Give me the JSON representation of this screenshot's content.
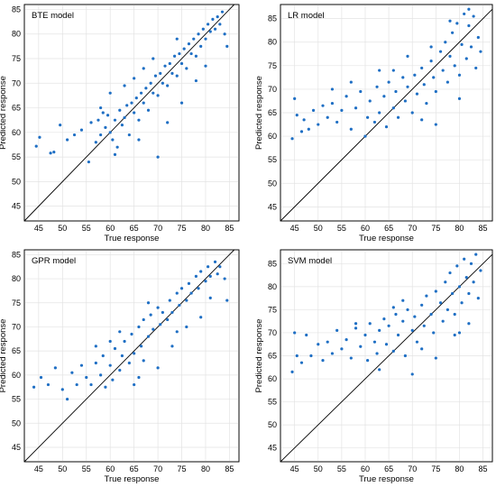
{
  "chart_data": [
    {
      "type": "scatter",
      "title": "BTE model",
      "xlabel": "True response",
      "ylabel": "Predicted response",
      "xlim": [
        42,
        87
      ],
      "ylim": [
        42,
        86
      ],
      "xticks": [
        45,
        50,
        55,
        60,
        65,
        70,
        75,
        80,
        85
      ],
      "yticks": [
        45,
        50,
        55,
        60,
        65,
        70,
        75,
        80,
        85
      ],
      "grid": true,
      "reference_line": "y = x",
      "point_color": "#1f6fc4",
      "points": [
        [
          44.5,
          57.2
        ],
        [
          45.2,
          59.0
        ],
        [
          47.5,
          55.8
        ],
        [
          48.2,
          56.0
        ],
        [
          49.5,
          61.5
        ],
        [
          51.0,
          58.5
        ],
        [
          52.5,
          59.5
        ],
        [
          54.0,
          60.5
        ],
        [
          55.5,
          54.0
        ],
        [
          56.0,
          62.0
        ],
        [
          57.0,
          58.0
        ],
        [
          57.5,
          62.5
        ],
        [
          58.0,
          59.5
        ],
        [
          58.5,
          64.0
        ],
        [
          59.0,
          61.0
        ],
        [
          59.5,
          63.5
        ],
        [
          60.0,
          60.0
        ],
        [
          60.5,
          58.5
        ],
        [
          61.0,
          62.5
        ],
        [
          61.5,
          57.0
        ],
        [
          62.0,
          64.5
        ],
        [
          62.5,
          61.5
        ],
        [
          63.0,
          63.0
        ],
        [
          63.5,
          65.5
        ],
        [
          64.0,
          59.5
        ],
        [
          64.5,
          66.0
        ],
        [
          65.0,
          64.0
        ],
        [
          65.5,
          67.0
        ],
        [
          66.0,
          62.5
        ],
        [
          66.5,
          68.0
        ],
        [
          67.0,
          66.0
        ],
        [
          67.5,
          69.0
        ],
        [
          68.0,
          64.5
        ],
        [
          68.5,
          70.0
        ],
        [
          69.0,
          68.0
        ],
        [
          69.5,
          71.5
        ],
        [
          70.0,
          67.5
        ],
        [
          70.5,
          72.0
        ],
        [
          71.0,
          70.0
        ],
        [
          71.5,
          73.5
        ],
        [
          72.0,
          69.5
        ],
        [
          72.5,
          74.0
        ],
        [
          73.0,
          72.0
        ],
        [
          73.5,
          75.5
        ],
        [
          74.0,
          71.5
        ],
        [
          74.5,
          76.0
        ],
        [
          75.0,
          74.0
        ],
        [
          75.5,
          77.0
        ],
        [
          76.0,
          73.0
        ],
        [
          76.5,
          78.0
        ],
        [
          77.0,
          76.0
        ],
        [
          77.5,
          79.0
        ],
        [
          78.0,
          75.5
        ],
        [
          78.5,
          80.0
        ],
        [
          79.0,
          77.5
        ],
        [
          79.5,
          81.0
        ],
        [
          80.0,
          79.0
        ],
        [
          80.5,
          82.0
        ],
        [
          81.0,
          80.5
        ],
        [
          81.5,
          83.0
        ],
        [
          82.0,
          81.0
        ],
        [
          82.5,
          83.5
        ],
        [
          83.0,
          82.0
        ],
        [
          83.5,
          84.5
        ],
        [
          84.0,
          80.0
        ],
        [
          84.5,
          77.5
        ],
        [
          70.0,
          55.0
        ],
        [
          72.0,
          62.0
        ],
        [
          75.0,
          66.0
        ],
        [
          60.0,
          68.0
        ],
        [
          63.0,
          69.5
        ],
        [
          65.0,
          71.0
        ],
        [
          58.0,
          65.0
        ],
        [
          78.0,
          70.5
        ],
        [
          80.0,
          73.5
        ],
        [
          67.0,
          73.0
        ],
        [
          69.0,
          75.0
        ],
        [
          74.0,
          79.0
        ],
        [
          66.0,
          58.5
        ],
        [
          61.0,
          55.5
        ]
      ]
    },
    {
      "type": "scatter",
      "title": "LR model",
      "xlabel": "True response",
      "ylabel": "Predicted response",
      "xlim": [
        42,
        87
      ],
      "ylim": [
        42,
        88
      ],
      "xticks": [
        45,
        50,
        55,
        60,
        65,
        70,
        75,
        80,
        85
      ],
      "yticks": [
        45,
        50,
        55,
        60,
        65,
        70,
        75,
        80,
        85
      ],
      "grid": true,
      "reference_line": "y = x",
      "point_color": "#1f6fc4",
      "points": [
        [
          44.5,
          59.5
        ],
        [
          45.0,
          68.0
        ],
        [
          45.5,
          64.5
        ],
        [
          46.5,
          61.0
        ],
        [
          47.0,
          63.5
        ],
        [
          48.0,
          61.5
        ],
        [
          49.0,
          65.5
        ],
        [
          50.0,
          62.5
        ],
        [
          51.0,
          66.5
        ],
        [
          52.0,
          64.0
        ],
        [
          53.0,
          67.0
        ],
        [
          54.0,
          63.0
        ],
        [
          55.0,
          65.5
        ],
        [
          56.0,
          68.5
        ],
        [
          57.0,
          61.5
        ],
        [
          58.0,
          66.0
        ],
        [
          59.0,
          69.5
        ],
        [
          60.0,
          60.0
        ],
        [
          60.5,
          64.0
        ],
        [
          61.0,
          67.5
        ],
        [
          62.0,
          63.0
        ],
        [
          62.5,
          70.5
        ],
        [
          63.0,
          65.0
        ],
        [
          64.0,
          68.5
        ],
        [
          64.5,
          62.0
        ],
        [
          65.0,
          71.5
        ],
        [
          66.0,
          66.0
        ],
        [
          66.5,
          69.5
        ],
        [
          67.0,
          64.0
        ],
        [
          68.0,
          72.5
        ],
        [
          68.5,
          67.5
        ],
        [
          69.0,
          70.5
        ],
        [
          70.0,
          65.0
        ],
        [
          70.5,
          73.0
        ],
        [
          71.0,
          69.0
        ],
        [
          72.0,
          74.5
        ],
        [
          72.5,
          71.0
        ],
        [
          73.0,
          67.0
        ],
        [
          74.0,
          76.0
        ],
        [
          74.5,
          72.5
        ],
        [
          75.0,
          69.5
        ],
        [
          76.0,
          78.0
        ],
        [
          76.5,
          74.0
        ],
        [
          77.0,
          80.0
        ],
        [
          77.5,
          71.5
        ],
        [
          78.0,
          77.0
        ],
        [
          78.5,
          82.0
        ],
        [
          79.0,
          75.0
        ],
        [
          79.5,
          84.0
        ],
        [
          80.0,
          73.0
        ],
        [
          80.5,
          79.5
        ],
        [
          81.0,
          86.0
        ],
        [
          81.5,
          76.5
        ],
        [
          82.0,
          83.5
        ],
        [
          82.5,
          79.0
        ],
        [
          83.0,
          85.5
        ],
        [
          83.5,
          74.5
        ],
        [
          84.0,
          81.0
        ],
        [
          84.5,
          78.0
        ],
        [
          75.0,
          62.5
        ],
        [
          72.0,
          63.5
        ],
        [
          66.0,
          74.0
        ],
        [
          80.0,
          68.0
        ],
        [
          78.0,
          84.5
        ],
        [
          82.0,
          87.0
        ],
        [
          57.0,
          71.5
        ],
        [
          53.0,
          70.0
        ],
        [
          69.0,
          77.0
        ],
        [
          74.0,
          79.0
        ],
        [
          63.0,
          74.0
        ]
      ]
    },
    {
      "type": "scatter",
      "title": "GPR model",
      "xlabel": "True response",
      "ylabel": "Predicted response",
      "xlim": [
        42,
        87
      ],
      "ylim": [
        42,
        86
      ],
      "xticks": [
        45,
        50,
        55,
        60,
        65,
        70,
        75,
        80,
        85
      ],
      "yticks": [
        45,
        50,
        55,
        60,
        65,
        70,
        75,
        80,
        85
      ],
      "grid": true,
      "reference_line": "y = x",
      "point_color": "#1f6fc4",
      "points": [
        [
          44.0,
          57.5
        ],
        [
          45.5,
          59.5
        ],
        [
          47.0,
          58.0
        ],
        [
          48.5,
          61.5
        ],
        [
          50.0,
          57.0
        ],
        [
          51.0,
          55.0
        ],
        [
          52.0,
          60.5
        ],
        [
          53.0,
          58.0
        ],
        [
          54.0,
          62.0
        ],
        [
          55.0,
          59.5
        ],
        [
          56.0,
          58.0
        ],
        [
          57.0,
          62.5
        ],
        [
          58.0,
          60.0
        ],
        [
          58.5,
          64.0
        ],
        [
          59.0,
          57.5
        ],
        [
          60.0,
          62.0
        ],
        [
          60.5,
          59.0
        ],
        [
          61.0,
          65.5
        ],
        [
          62.0,
          61.0
        ],
        [
          62.5,
          64.0
        ],
        [
          63.0,
          67.0
        ],
        [
          64.0,
          62.5
        ],
        [
          64.5,
          68.5
        ],
        [
          65.0,
          64.5
        ],
        [
          66.0,
          70.0
        ],
        [
          66.5,
          66.0
        ],
        [
          67.0,
          71.5
        ],
        [
          68.0,
          68.0
        ],
        [
          68.5,
          72.5
        ],
        [
          69.0,
          69.5
        ],
        [
          70.0,
          74.0
        ],
        [
          70.5,
          70.5
        ],
        [
          71.0,
          73.0
        ],
        [
          72.0,
          71.5
        ],
        [
          72.5,
          75.5
        ],
        [
          73.0,
          73.0
        ],
        [
          74.0,
          77.0
        ],
        [
          74.5,
          74.5
        ],
        [
          75.0,
          78.0
        ],
        [
          76.0,
          75.5
        ],
        [
          76.5,
          79.0
        ],
        [
          77.0,
          77.0
        ],
        [
          78.0,
          80.5
        ],
        [
          78.5,
          78.0
        ],
        [
          79.0,
          81.5
        ],
        [
          80.0,
          79.5
        ],
        [
          80.5,
          82.5
        ],
        [
          81.0,
          80.5
        ],
        [
          82.0,
          83.5
        ],
        [
          82.5,
          81.0
        ],
        [
          83.0,
          82.5
        ],
        [
          84.0,
          80.0
        ],
        [
          84.5,
          75.5
        ],
        [
          65.0,
          58.0
        ],
        [
          70.0,
          61.5
        ],
        [
          73.0,
          66.0
        ],
        [
          76.0,
          70.0
        ],
        [
          68.0,
          75.0
        ],
        [
          62.0,
          69.0
        ],
        [
          60.0,
          67.0
        ],
        [
          79.0,
          72.0
        ],
        [
          81.0,
          76.0
        ],
        [
          57.0,
          66.0
        ],
        [
          66.0,
          59.5
        ],
        [
          74.0,
          69.0
        ],
        [
          67.0,
          63.0
        ]
      ]
    },
    {
      "type": "scatter",
      "title": "SVM model",
      "xlabel": "True response",
      "ylabel": "Predicted response",
      "xlim": [
        42,
        87
      ],
      "ylim": [
        42,
        88
      ],
      "xticks": [
        45,
        50,
        55,
        60,
        65,
        70,
        75,
        80,
        85
      ],
      "yticks": [
        45,
        50,
        55,
        60,
        65,
        70,
        75,
        80,
        85
      ],
      "grid": true,
      "reference_line": "y = x",
      "point_color": "#1f6fc4",
      "points": [
        [
          44.5,
          61.5
        ],
        [
          45.0,
          70.0
        ],
        [
          45.5,
          65.0
        ],
        [
          46.5,
          63.5
        ],
        [
          47.5,
          69.5
        ],
        [
          48.5,
          65.0
        ],
        [
          50.0,
          67.5
        ],
        [
          51.0,
          64.0
        ],
        [
          52.0,
          68.0
        ],
        [
          53.0,
          65.5
        ],
        [
          54.0,
          70.5
        ],
        [
          55.0,
          66.5
        ],
        [
          56.0,
          68.5
        ],
        [
          57.0,
          64.5
        ],
        [
          58.0,
          71.0
        ],
        [
          59.0,
          67.0
        ],
        [
          60.0,
          69.5
        ],
        [
          60.5,
          64.0
        ],
        [
          61.0,
          72.0
        ],
        [
          62.0,
          68.0
        ],
        [
          62.5,
          65.5
        ],
        [
          63.0,
          70.5
        ],
        [
          64.0,
          73.0
        ],
        [
          64.5,
          67.5
        ],
        [
          65.0,
          71.5
        ],
        [
          66.0,
          66.0
        ],
        [
          66.5,
          74.0
        ],
        [
          67.0,
          69.5
        ],
        [
          68.0,
          72.5
        ],
        [
          68.5,
          65.0
        ],
        [
          69.0,
          75.0
        ],
        [
          70.0,
          70.5
        ],
        [
          70.5,
          73.5
        ],
        [
          71.0,
          68.0
        ],
        [
          72.0,
          76.0
        ],
        [
          72.5,
          71.5
        ],
        [
          73.0,
          78.0
        ],
        [
          74.0,
          74.0
        ],
        [
          74.5,
          70.0
        ],
        [
          75.0,
          79.0
        ],
        [
          76.0,
          76.5
        ],
        [
          76.5,
          72.5
        ],
        [
          77.0,
          81.0
        ],
        [
          77.5,
          75.0
        ],
        [
          78.0,
          83.0
        ],
        [
          78.5,
          78.5
        ],
        [
          79.0,
          74.0
        ],
        [
          79.5,
          84.5
        ],
        [
          80.0,
          80.0
        ],
        [
          80.5,
          76.5
        ],
        [
          81.0,
          86.0
        ],
        [
          81.5,
          82.0
        ],
        [
          82.0,
          78.5
        ],
        [
          82.5,
          85.0
        ],
        [
          83.0,
          81.0
        ],
        [
          83.5,
          87.0
        ],
        [
          84.0,
          77.5
        ],
        [
          84.5,
          83.5
        ],
        [
          75.0,
          64.5
        ],
        [
          70.0,
          61.0
        ],
        [
          79.0,
          69.5
        ],
        [
          63.0,
          62.0
        ],
        [
          68.0,
          77.0
        ],
        [
          66.0,
          75.5
        ],
        [
          58.0,
          72.0
        ],
        [
          82.0,
          72.0
        ],
        [
          80.0,
          70.0
        ],
        [
          72.0,
          66.5
        ]
      ]
    }
  ]
}
